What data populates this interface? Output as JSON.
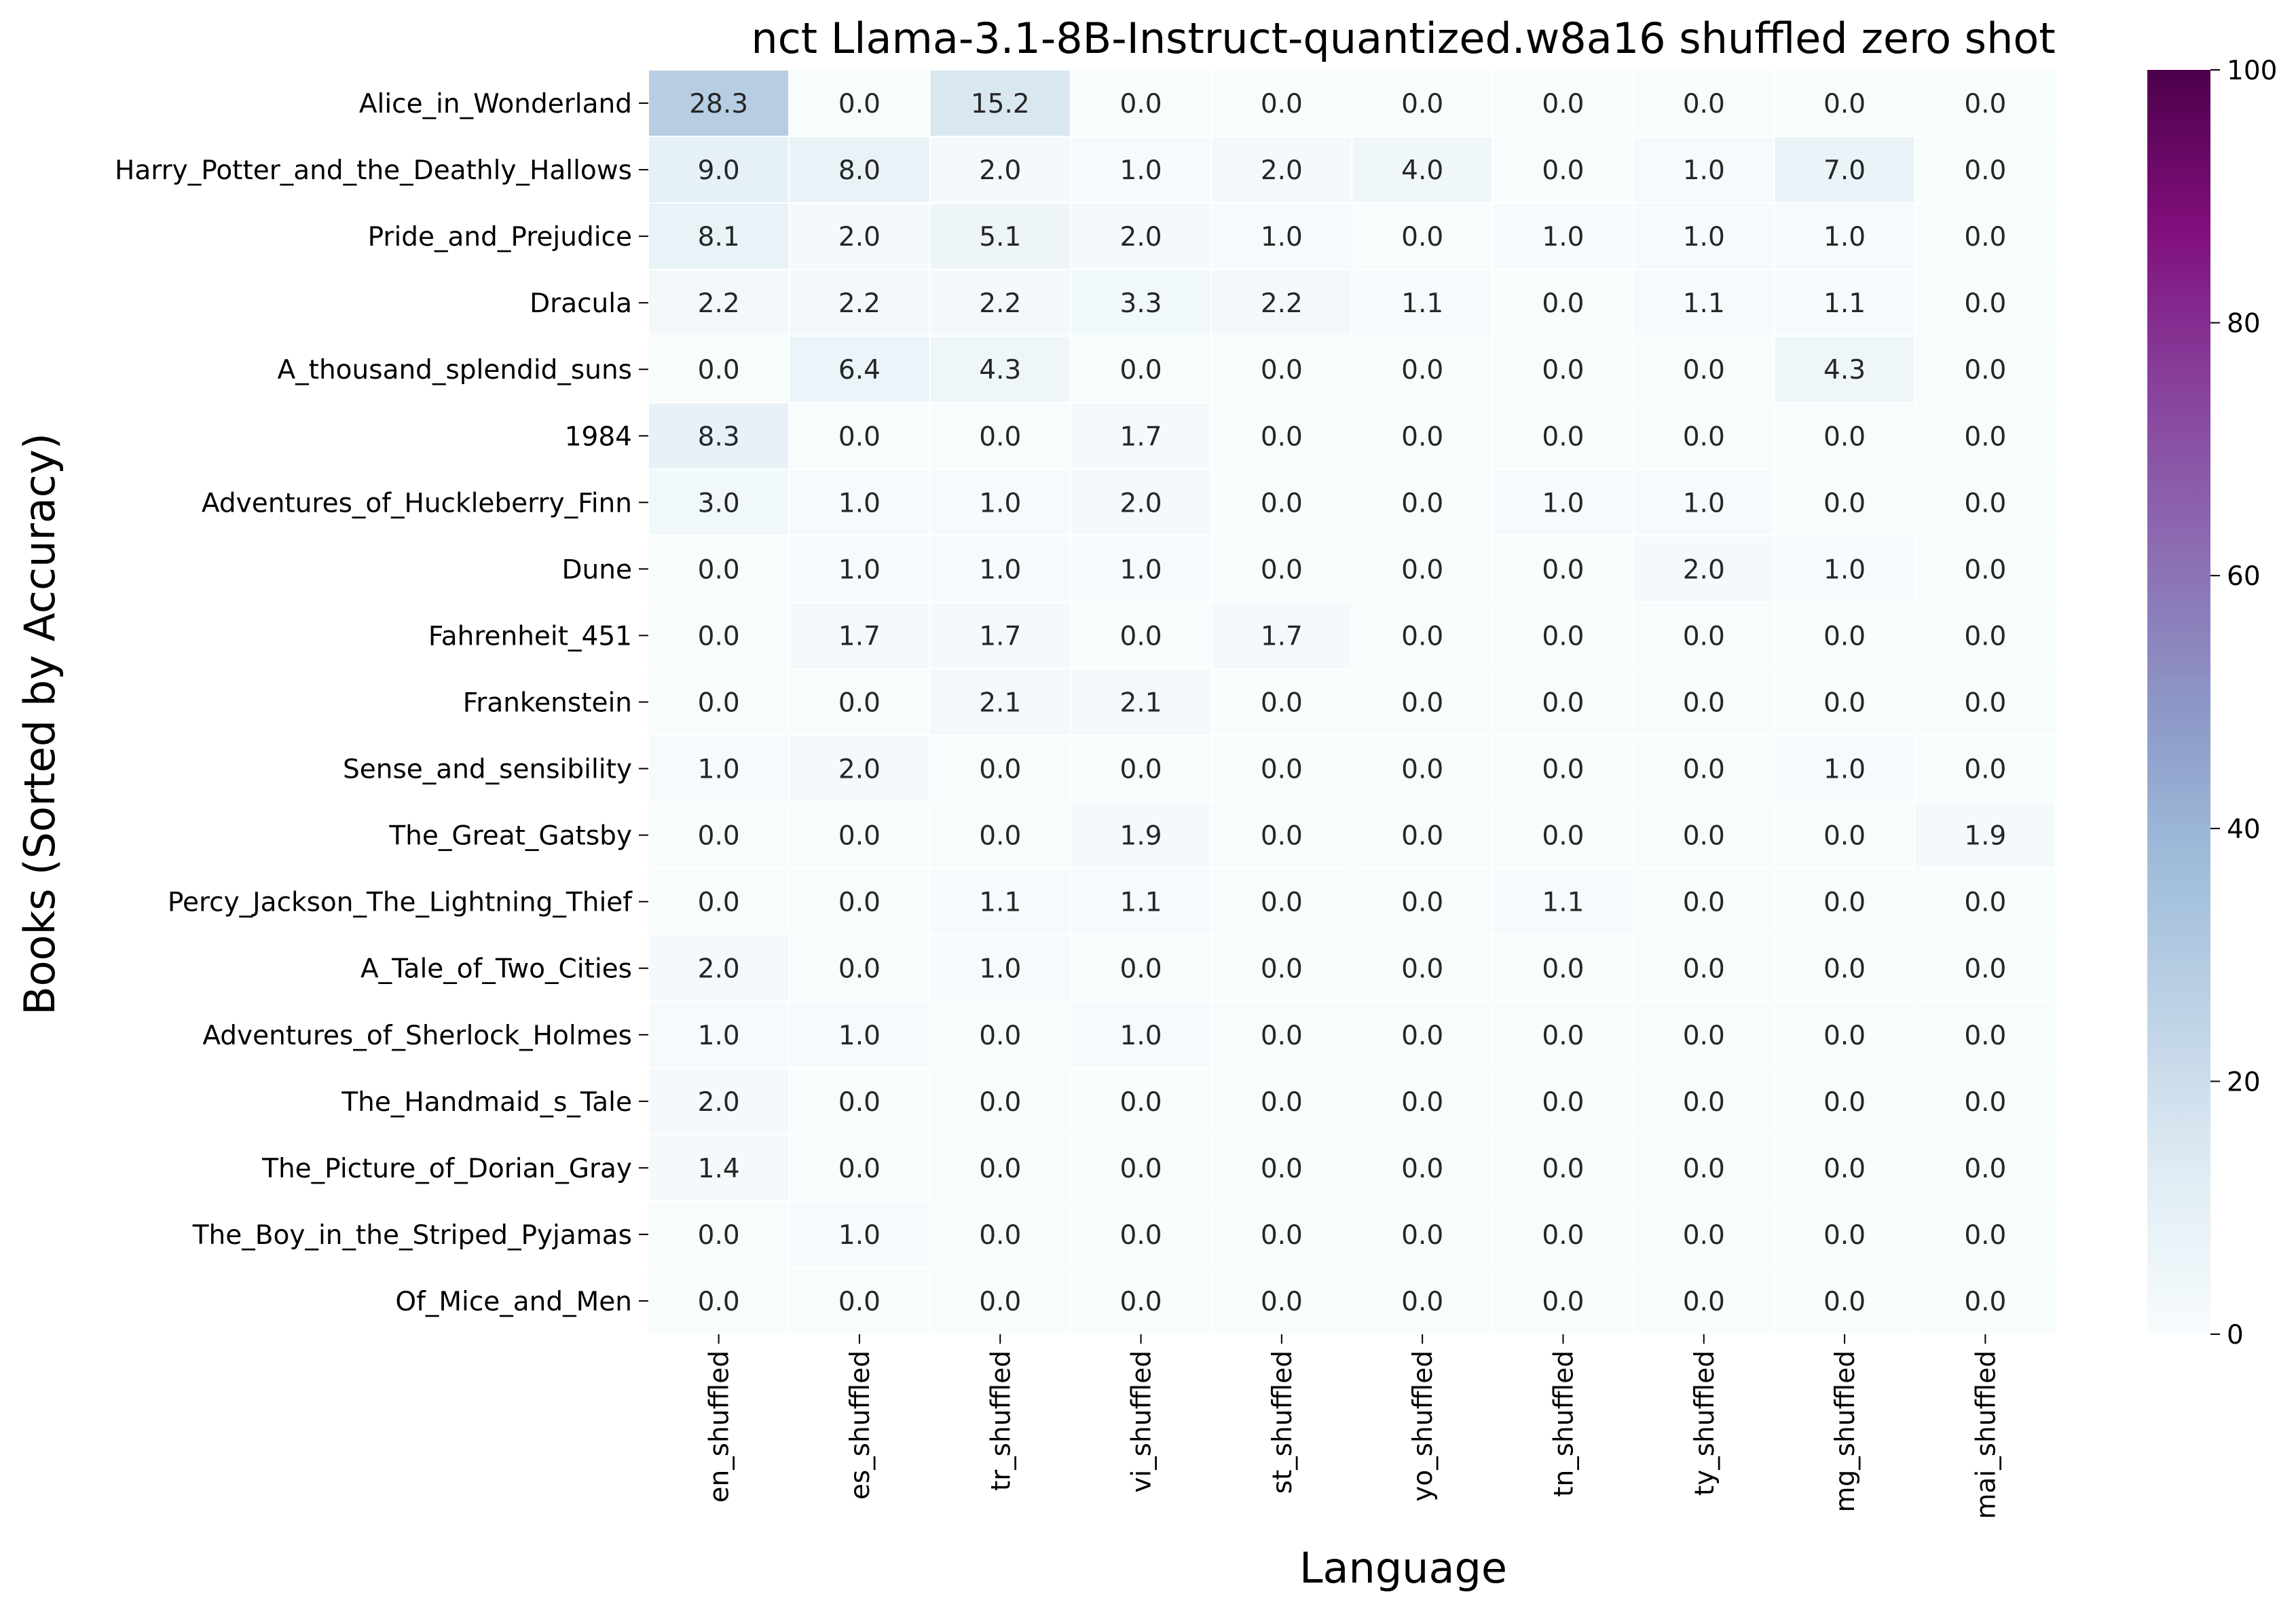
{
  "chart_data": {
    "type": "heatmap",
    "title": "nct Llama-3.1-8B-Instruct-quantized.w8a16 shuffled zero shot",
    "xlabel": "Language",
    "ylabel": "Books (Sorted by Accuracy)",
    "columns": [
      "en_shuffled",
      "es_shuffled",
      "tr_shuffled",
      "vi_shuffled",
      "st_shuffled",
      "yo_shuffled",
      "tn_shuffled",
      "ty_shuffled",
      "mg_shuffled",
      "mai_shuffled"
    ],
    "rows": [
      "Alice_in_Wonderland",
      "Harry_Potter_and_the_Deathly_Hallows",
      "Pride_and_Prejudice",
      "Dracula",
      "A_thousand_splendid_suns",
      "1984",
      "Adventures_of_Huckleberry_Finn",
      "Dune",
      "Fahrenheit_451",
      "Frankenstein",
      "Sense_and_sensibility",
      "The_Great_Gatsby",
      "Percy_Jackson_The_Lightning_Thief",
      "A_Tale_of_Two_Cities",
      "Adventures_of_Sherlock_Holmes",
      "The_Handmaid_s_Tale",
      "The_Picture_of_Dorian_Gray",
      "The_Boy_in_the_Striped_Pyjamas",
      "Of_Mice_and_Men"
    ],
    "values": [
      [
        28.3,
        0.0,
        15.2,
        0.0,
        0.0,
        0.0,
        0.0,
        0.0,
        0.0,
        0.0
      ],
      [
        9.0,
        8.0,
        2.0,
        1.0,
        2.0,
        4.0,
        0.0,
        1.0,
        7.0,
        0.0
      ],
      [
        8.1,
        2.0,
        5.1,
        2.0,
        1.0,
        0.0,
        1.0,
        1.0,
        1.0,
        0.0
      ],
      [
        2.2,
        2.2,
        2.2,
        3.3,
        2.2,
        1.1,
        0.0,
        1.1,
        1.1,
        0.0
      ],
      [
        0.0,
        6.4,
        4.3,
        0.0,
        0.0,
        0.0,
        0.0,
        0.0,
        4.3,
        0.0
      ],
      [
        8.3,
        0.0,
        0.0,
        1.7,
        0.0,
        0.0,
        0.0,
        0.0,
        0.0,
        0.0
      ],
      [
        3.0,
        1.0,
        1.0,
        2.0,
        0.0,
        0.0,
        1.0,
        1.0,
        0.0,
        0.0
      ],
      [
        0.0,
        1.0,
        1.0,
        1.0,
        0.0,
        0.0,
        0.0,
        2.0,
        1.0,
        0.0
      ],
      [
        0.0,
        1.7,
        1.7,
        0.0,
        1.7,
        0.0,
        0.0,
        0.0,
        0.0,
        0.0
      ],
      [
        0.0,
        0.0,
        2.1,
        2.1,
        0.0,
        0.0,
        0.0,
        0.0,
        0.0,
        0.0
      ],
      [
        1.0,
        2.0,
        0.0,
        0.0,
        0.0,
        0.0,
        0.0,
        0.0,
        1.0,
        0.0
      ],
      [
        0.0,
        0.0,
        0.0,
        1.9,
        0.0,
        0.0,
        0.0,
        0.0,
        0.0,
        1.9
      ],
      [
        0.0,
        0.0,
        1.1,
        1.1,
        0.0,
        0.0,
        1.1,
        0.0,
        0.0,
        0.0
      ],
      [
        2.0,
        0.0,
        1.0,
        0.0,
        0.0,
        0.0,
        0.0,
        0.0,
        0.0,
        0.0
      ],
      [
        1.0,
        1.0,
        0.0,
        1.0,
        0.0,
        0.0,
        0.0,
        0.0,
        0.0,
        0.0
      ],
      [
        2.0,
        0.0,
        0.0,
        0.0,
        0.0,
        0.0,
        0.0,
        0.0,
        0.0,
        0.0
      ],
      [
        1.4,
        0.0,
        0.0,
        0.0,
        0.0,
        0.0,
        0.0,
        0.0,
        0.0,
        0.0
      ],
      [
        0.0,
        1.0,
        0.0,
        0.0,
        0.0,
        0.0,
        0.0,
        0.0,
        0.0,
        0.0
      ],
      [
        0.0,
        0.0,
        0.0,
        0.0,
        0.0,
        0.0,
        0.0,
        0.0,
        0.0,
        0.0
      ]
    ],
    "value_format": "0.0",
    "colorbar": {
      "min": 0,
      "max": 100,
      "ticks": [
        0,
        20,
        40,
        60,
        80,
        100
      ],
      "colormap": "BuPu",
      "colors": [
        "#f7fcfd",
        "#e0ecf4",
        "#bfd3e6",
        "#9ebcda",
        "#8c96c6",
        "#8c6bb1",
        "#88419d",
        "#810f7c",
        "#4d004b"
      ]
    },
    "grid": false,
    "cell_borders": true
  }
}
